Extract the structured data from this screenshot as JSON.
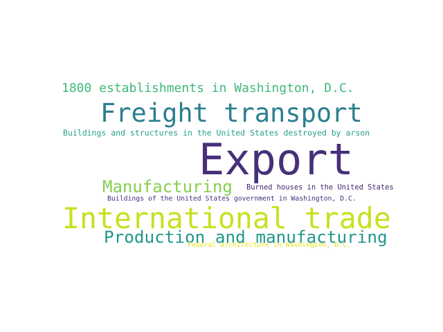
{
  "word_cloud": {
    "words": [
      {
        "text": "1800 establishments in Washington, D.C.",
        "color": "#3fb87c"
      },
      {
        "text": "Freight transport",
        "color": "#2a7f8e"
      },
      {
        "text": "Buildings and structures in the United States destroyed by arson",
        "color": "#26a08a"
      },
      {
        "text": "Export",
        "color": "#46307a"
      },
      {
        "text": "Manufacturing",
        "color": "#86cf4f"
      },
      {
        "text": "Burned houses in the United States",
        "color": "#44236e"
      },
      {
        "text": "Buildings of the United States government in Washington, D.C.",
        "color": "#442e7e"
      },
      {
        "text": "International trade",
        "color": "#c8e020"
      },
      {
        "text": "Production and manufacturing",
        "color": "#20968c"
      },
      {
        "text": "Federal architecture in Washington, D.C.",
        "color": "#e5e419"
      }
    ]
  }
}
